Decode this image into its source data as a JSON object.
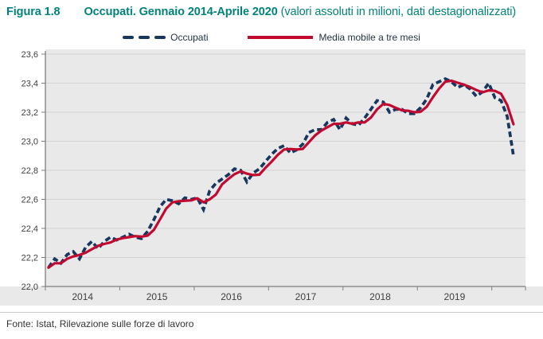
{
  "header": {
    "figure_label": "Figura 1.8",
    "title_bold": "Occupati. Gennaio 2014-Aprile 2020",
    "title_normal": " (valori assoluti in milioni, dati destagionalizzati)"
  },
  "legend": {
    "items": [
      {
        "label": "Occupati"
      },
      {
        "label": "Media mobile a tre mesi"
      }
    ]
  },
  "footer": {
    "source": "Fonte: Istat, Rilevazione sulle forze di lavoro"
  },
  "colors": {
    "title_teal": "#00837b",
    "occupati_navy": "#17375e",
    "media_mobile_red": "#c00a30",
    "panel_bg": "#e9e9e9",
    "gridline": "#d3d3d3",
    "axis": "#7f7f7f",
    "axis_text": "#404040",
    "legend_text": "#1f3044"
  },
  "chart_data": {
    "type": "line",
    "title": "Occupati. Gennaio 2014-Aprile 2020",
    "subtitle": "valori assoluti in milioni, dati destagionalizzati",
    "x_start": "2014-01",
    "x_end": "2020-04",
    "frequency": "monthly",
    "n_points": 76,
    "ylim": [
      22.0,
      23.6
    ],
    "grid": "horizontal",
    "legend_position": "top",
    "yticks": [
      {
        "label": "23,6",
        "value": 23.6
      },
      {
        "label": "23,4",
        "value": 23.4
      },
      {
        "label": "23,2",
        "value": 23.2
      },
      {
        "label": "23,0",
        "value": 23.0
      },
      {
        "label": "22,8",
        "value": 22.8
      },
      {
        "label": "22,6",
        "value": 22.6
      },
      {
        "label": "22,4",
        "value": 22.4
      },
      {
        "label": "22,2",
        "value": 22.2
      },
      {
        "label": "22,0",
        "value": 22.0
      }
    ],
    "xticks_years": [
      "2014",
      "2015",
      "2016",
      "2017",
      "2018",
      "2019"
    ],
    "series": [
      {
        "name": "Occupati",
        "style": "dashed",
        "color": "#17375e",
        "values": [
          22.13,
          22.19,
          22.16,
          22.22,
          22.24,
          22.19,
          22.27,
          22.31,
          22.26,
          22.31,
          22.34,
          22.32,
          22.34,
          22.36,
          22.34,
          22.33,
          22.38,
          22.46,
          22.55,
          22.6,
          22.59,
          22.57,
          22.61,
          22.6,
          22.61,
          22.53,
          22.66,
          22.71,
          22.74,
          22.77,
          22.81,
          22.8,
          22.72,
          22.78,
          22.81,
          22.86,
          22.91,
          22.95,
          22.97,
          22.92,
          22.94,
          22.98,
          23.06,
          23.08,
          23.08,
          23.13,
          23.15,
          23.08,
          23.16,
          23.12,
          23.11,
          23.16,
          23.22,
          23.28,
          23.27,
          23.2,
          23.22,
          23.22,
          23.19,
          23.19,
          23.23,
          23.29,
          23.39,
          23.41,
          23.43,
          23.41,
          23.37,
          23.39,
          23.36,
          23.31,
          23.34,
          23.4,
          23.3,
          23.28,
          23.17,
          22.9
        ]
      },
      {
        "name": "Media mobile a tre mesi",
        "style": "solid",
        "color": "#c00a30",
        "values": [
          22.13,
          22.16,
          22.16,
          22.19,
          22.207,
          22.217,
          22.233,
          22.257,
          22.28,
          22.293,
          22.303,
          22.323,
          22.333,
          22.34,
          22.347,
          22.343,
          22.35,
          22.39,
          22.463,
          22.537,
          22.58,
          22.587,
          22.59,
          22.593,
          22.607,
          22.58,
          22.6,
          22.633,
          22.703,
          22.74,
          22.773,
          22.793,
          22.777,
          22.767,
          22.77,
          22.817,
          22.86,
          22.907,
          22.943,
          22.947,
          22.943,
          22.947,
          22.993,
          23.04,
          23.073,
          23.097,
          23.12,
          23.12,
          23.13,
          23.12,
          23.13,
          23.13,
          23.163,
          23.22,
          23.257,
          23.25,
          23.23,
          23.213,
          23.21,
          23.2,
          23.203,
          23.237,
          23.303,
          23.363,
          23.41,
          23.417,
          23.403,
          23.39,
          23.373,
          23.353,
          23.337,
          23.35,
          23.347,
          23.327,
          23.25,
          23.117
        ]
      }
    ]
  }
}
